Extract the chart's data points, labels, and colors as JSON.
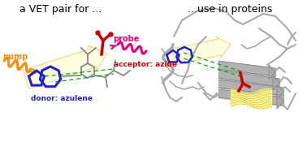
{
  "title_left": "a VET pair for ...",
  "title_right": "...use in proteins",
  "label_pump": "pump",
  "label_probe": "probe",
  "label_donor": "donor: azulene",
  "label_acceptor": "acceptor: azide",
  "color_pump": "#FF8C00",
  "color_probe": "#E8007A",
  "color_donor": "#2222CC",
  "color_acceptor": "#CC0000",
  "color_arrow_fill": "#FFFDE0",
  "color_arrow_edge": "#E8DC80",
  "color_dashes": "#00AA00",
  "color_molecule": "#888888",
  "color_protein": "#AAAAAA",
  "color_protein_dark": "#888888",
  "color_helix": "#FFFAAA",
  "color_helix_edge": "#C8B800",
  "bg_color": "#FFFFFF",
  "figsize": [
    3.78,
    1.75
  ],
  "dpi": 100
}
